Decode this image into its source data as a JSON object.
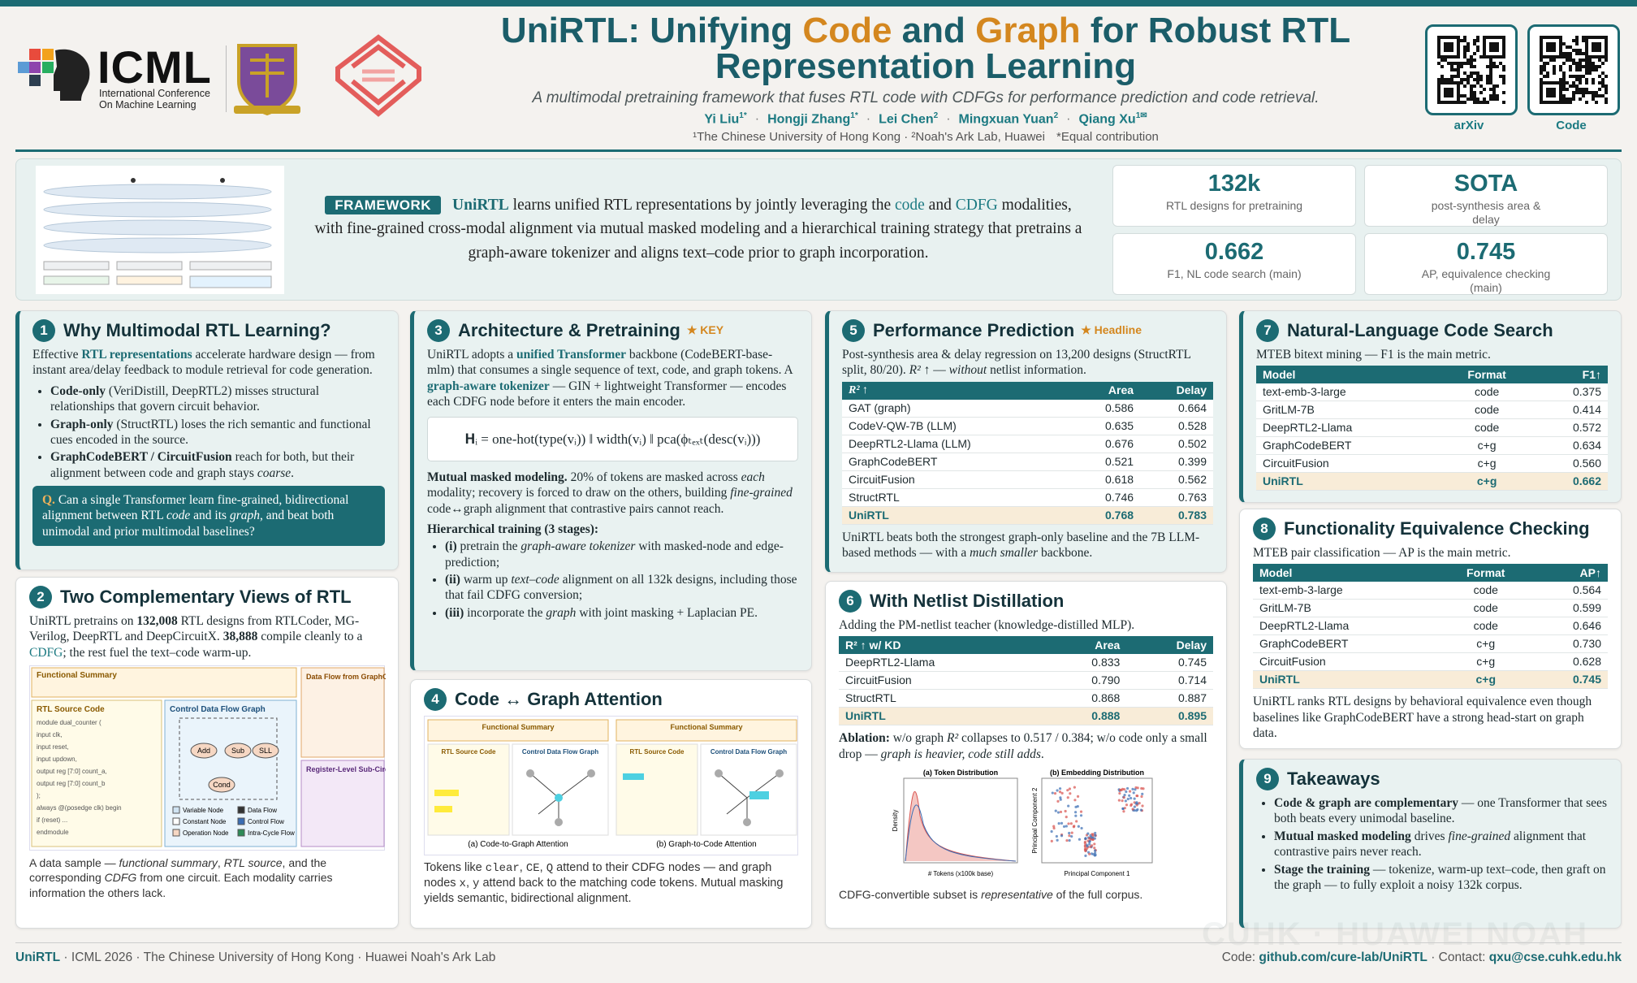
{
  "header": {
    "title": [
      "UniRTL: Unifying ",
      "Code",
      " and ",
      "Graph",
      " for Robust RTL Representation Learning"
    ],
    "subtitle": "A multimodal pretraining framework that fuses RTL code with CDFGs for performance prediction and code retrieval.",
    "authors": [
      {
        "name": "Yi Liu",
        "sup": "1*"
      },
      {
        "name": "Hongji Zhang",
        "sup": "1*"
      },
      {
        "name": "Lei Chen",
        "sup": "2"
      },
      {
        "name": "Mingxuan Yuan",
        "sup": "2"
      },
      {
        "name": "Qiang Xu",
        "sup": "1✉"
      }
    ],
    "separator": "·",
    "affiliations": [
      "¹The Chinese University of Hong Kong · ²Noah's Ark Lab, Huawei",
      "*Equal contribution"
    ],
    "logo": {
      "name": "ICML",
      "sub": "International Conference On Machine Learning"
    },
    "qr": [
      "arXiv",
      "Code"
    ]
  },
  "banner": {
    "tag": "FRAMEWORK",
    "text": [
      "UniRTL",
      " learns unified RTL representations by jointly leveraging the ",
      "code",
      " and ",
      "CDFG",
      " modalities, with fine-grained cross-modal alignment via mutual masked modeling and a hierarchical training strategy that pretrains a graph-aware tokenizer and aligns text–code prior to graph incorporation."
    ],
    "stats": [
      {
        "value": "132k",
        "label": "RTL designs for pretraining"
      },
      {
        "value": "SOTA",
        "label": "post-synthesis area & delay"
      },
      {
        "value": "0.662",
        "label": "F1, NL code search (main)"
      },
      {
        "value": "0.745",
        "label": "AP, equivalence checking (main)"
      }
    ]
  },
  "sections": [
    {
      "num": "1",
      "title": "Why Multimodal RTL Learning?",
      "intro": [
        "Effective ",
        "RTL representations",
        " accelerate hardware design — from instant area/delay feedback to module retrieval for code generation."
      ],
      "bullets": [
        [
          "Code-only",
          " (VeriDistill, DeepRTL2) misses structural relationships that govern circuit behavior."
        ],
        [
          "Graph-only",
          " (StructRTL) loses the rich semantic and functional cues encoded in the source."
        ],
        [
          "GraphCodeBERT / CircuitFusion",
          " reach for both, but their alignment between code and graph stays ",
          "coarse",
          "."
        ]
      ],
      "question": [
        "Q.",
        " Can a single Transformer learn fine-grained, bidirectional alignment between RTL ",
        "code",
        " and its ",
        "graph",
        ", and beat both unimodal and prior multimodal baselines?"
      ]
    },
    {
      "num": "2",
      "title": "Two Complementary Views of RTL",
      "text": [
        "UniRTL pretrains on ",
        "132,008",
        " RTL designs from RTLCoder, MG-Verilog, DeepRTL and DeepCircuitX. ",
        "38,888",
        " compile cleanly to a ",
        "CDFG",
        "; the rest fuel the text–code warm-up."
      ],
      "figure": {
        "summary": "Functional Summary",
        "code_title": "RTL Source Code",
        "graph_title": "Control Data Flow Graph",
        "df_title": "Data Flow from GraphCodeBERT",
        "reg_title": "Register-Level Sub-Circuit",
        "code": [
          "module dual_counter (",
          "  input clk,",
          "  input reset,",
          "  input updown,",
          "  output reg [7:0] count_a,",
          "  output reg [7:0] count_b",
          ");",
          "always @(posedge clk) begin",
          "  if (reset) ...",
          "endmodule"
        ],
        "nodes": [
          "Add",
          "Sub",
          "SLL",
          "Cond"
        ],
        "legend": [
          "Variable Node",
          "Constant Node",
          "Operation Node",
          "Data Flow",
          "Control Flow",
          "Intra-Cycle Flow"
        ]
      },
      "caption": [
        "A data sample — ",
        "functional summary",
        ", ",
        "RTL source",
        ", and the corresponding ",
        "CDFG",
        " from one circuit. Each modality carries information the others lack."
      ]
    },
    {
      "num": "3",
      "title": "Architecture & Pretraining",
      "badge": "★ KEY",
      "p1": [
        "UniRTL adopts a ",
        "unified Transformer",
        " backbone (CodeBERT-base-mlm) that consumes a single sequence of text, code, and graph tokens. A ",
        "graph-aware tokenizer",
        " — GIN + lightweight Transformer — encodes each CDFG node before it enters the main encoder."
      ],
      "equation": "𝐇ᵢ = one-hot(type(vᵢ)) ‖ width(vᵢ) ‖ pca(ϕₜₑₓₜ(desc(vᵢ)))",
      "p2": [
        "Mutual masked modeling.",
        " 20% of tokens are masked across ",
        "each",
        " modality; recovery is forced to draw on the others, building ",
        "fine-grained",
        " code↔graph alignment that contrastive pairs cannot reach."
      ],
      "stages_title": "Hierarchical training (3 stages):",
      "stages": [
        [
          "(i)",
          " pretrain the ",
          "graph-aware tokenizer",
          " with masked-node and edge-prediction;"
        ],
        [
          "(ii)",
          " warm up ",
          "text–code",
          " alignment on all 132k designs, including those that fail CDFG conversion;"
        ],
        [
          "(iii)",
          " incorporate the ",
          "graph",
          " with joint masking + Laplacian PE."
        ]
      ]
    },
    {
      "num": "4",
      "title": "Code ↔ Graph Attention",
      "figure": {
        "summary": "Functional Summary",
        "code_title": "RTL Source Code",
        "graph_title": "Control Data Flow Graph",
        "captions": [
          "(a) Code-to-Graph Attention",
          "(b) Graph-to-Code Attention"
        ]
      },
      "caption": [
        "Tokens like ",
        "clear",
        ", ",
        "CE",
        ", ",
        "Q",
        " attend to their CDFG nodes — and graph nodes ",
        "x",
        ", ",
        "y",
        " attend back to the matching code tokens. Mutual masking yields semantic, bidirectional alignment."
      ]
    },
    {
      "num": "5",
      "title": "Performance Prediction",
      "badge": "★ Headline",
      "text": [
        "Post-synthesis area & delay regression on 13,200 designs (StructRTL split, 80/20). ",
        "R² ↑",
        " — ",
        "without",
        " netlist information."
      ],
      "table": {
        "columns": [
          "R² ↑",
          "Area",
          "Delay"
        ],
        "rows": [
          [
            "GAT (graph)",
            "0.586",
            "0.664"
          ],
          [
            "CodeV-QW-7B (LLM)",
            "0.635",
            "0.528"
          ],
          [
            "DeepRTL2-Llama (LLM)",
            "0.676",
            "0.502"
          ],
          [
            "GraphCodeBERT",
            "0.521",
            "0.399"
          ],
          [
            "CircuitFusion",
            "0.618",
            "0.562"
          ],
          [
            "StructRTL",
            "0.746",
            "0.763"
          ],
          [
            "UniRTL",
            "0.768",
            "0.783"
          ]
        ]
      },
      "after": [
        "UniRTL beats both the strongest graph-only baseline and the 7B LLM-based methods — with a ",
        "much smaller",
        " backbone."
      ]
    },
    {
      "num": "6",
      "title": "With Netlist Distillation",
      "text": "Adding the PM-netlist teacher (knowledge-distilled MLP).",
      "table": {
        "columns": [
          "R² ↑ w/ KD",
          "Area",
          "Delay"
        ],
        "rows": [
          [
            "DeepRTL2-Llama",
            "0.833",
            "0.745"
          ],
          [
            "CircuitFusion",
            "0.790",
            "0.714"
          ],
          [
            "StructRTL",
            "0.868",
            "0.887"
          ],
          [
            "UniRTL",
            "0.888",
            "0.895"
          ]
        ]
      },
      "after": [
        "Ablation:",
        " w/o graph ",
        "R²",
        " collapses to 0.517 / 0.384; w/o code only a small drop — ",
        "graph is heavier, code still adds",
        "."
      ],
      "figure": {
        "titles": [
          "(a) Token Distribution",
          "(b) Embedding Distribution"
        ],
        "xlabels": [
          "# Tokens (x100k base)",
          "Principal Component 1"
        ],
        "ylabels": [
          "Density",
          "Principal Component 2"
        ]
      },
      "caption": [
        "CDFG-convertible subset is ",
        "representative",
        " of the full corpus."
      ]
    },
    {
      "num": "7",
      "title": "Natural-Language Code Search",
      "text": "MTEB bitext mining — F1 is the main metric.",
      "table": {
        "columns": [
          "Model",
          "Format",
          "F1↑"
        ],
        "rows": [
          [
            "text-emb-3-large",
            "code",
            "0.375"
          ],
          [
            "GritLM-7B",
            "code",
            "0.414"
          ],
          [
            "DeepRTL2-Llama",
            "code",
            "0.572"
          ],
          [
            "GraphCodeBERT",
            "c+g",
            "0.634"
          ],
          [
            "CircuitFusion",
            "c+g",
            "0.560"
          ],
          [
            "UniRTL",
            "c+g",
            "0.662"
          ]
        ]
      }
    },
    {
      "num": "8",
      "title": "Functionality Equivalence Checking",
      "text": "MTEB pair classification — AP is the main metric.",
      "table": {
        "columns": [
          "Model",
          "Format",
          "AP↑"
        ],
        "rows": [
          [
            "text-emb-3-large",
            "code",
            "0.564"
          ],
          [
            "GritLM-7B",
            "code",
            "0.599"
          ],
          [
            "DeepRTL2-Llama",
            "code",
            "0.646"
          ],
          [
            "GraphCodeBERT",
            "c+g",
            "0.730"
          ],
          [
            "CircuitFusion",
            "c+g",
            "0.628"
          ],
          [
            "UniRTL",
            "c+g",
            "0.745"
          ]
        ]
      },
      "after": "UniRTL ranks RTL designs by behavioral equivalence even though baselines like GraphCodeBERT have a strong head-start on graph data."
    },
    {
      "num": "9",
      "title": "Takeaways",
      "bullets": [
        [
          "Code & graph are complementary",
          " — one Transformer that sees both beats every unimodal baseline."
        ],
        [
          "Mutual masked modeling",
          " drives ",
          "fine-grained",
          " alignment that contrastive pairs never reach."
        ],
        [
          "Stage the training",
          " — tokenize, warm-up text–code, then graft on the graph — to fully exploit a noisy 132k corpus."
        ]
      ]
    }
  ],
  "watermark": "CUHK · HUAWEI NOAH",
  "footer": {
    "left": [
      "UniRTL",
      " · ICML 2026 · The Chinese University of Hong Kong · Huawei Noah's Ark Lab"
    ],
    "right": [
      "Code: ",
      "github.com/cure-lab/UniRTL",
      " · Contact: ",
      "qxu@cse.cuhk.edu.hk"
    ]
  }
}
